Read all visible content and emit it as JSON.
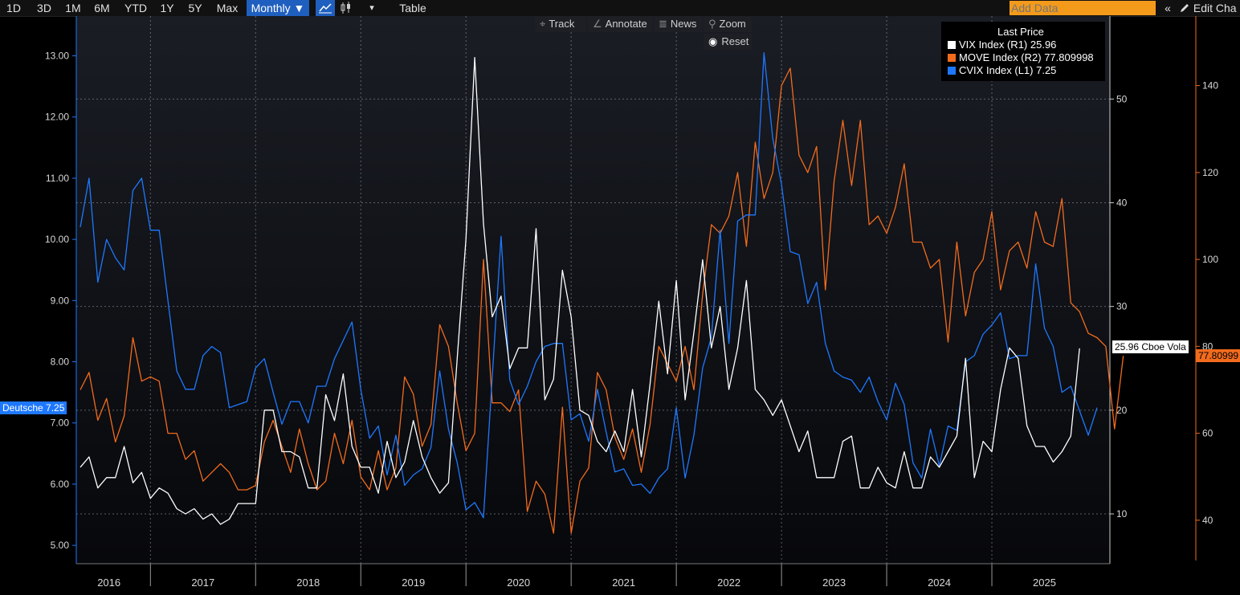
{
  "toolbar": {
    "ranges": [
      "1D",
      "3D",
      "1M",
      "6M",
      "YTD",
      "1Y",
      "5Y",
      "Max"
    ],
    "frequency": "Monthly ▼",
    "line_icon": "line-chart-icon",
    "candle_icon": "candlestick-icon",
    "more": "▾",
    "table": "Table",
    "add_data_placeholder": "Add Data",
    "collapse": "«",
    "edit_chart": "Edit Cha"
  },
  "chart_tools": {
    "track": "Track",
    "annotate": "Annotate",
    "news": "News",
    "zoom": "Zoom",
    "reset": "Reset"
  },
  "legend": {
    "title": "Last Price",
    "rows": [
      {
        "label": "VIX Index  (R1)   25.96",
        "color": "#ffffff"
      },
      {
        "label": "MOVE Index  (R2)  77.809998",
        "color": "#f26b1d"
      },
      {
        "label": "CVIX Index  (L1)  7.25",
        "color": "#1e78ff"
      }
    ]
  },
  "flags": {
    "left": "Deutsche 7.25",
    "vix": "25.96 Cboe Vola",
    "move": "77.80999"
  },
  "chart_data": {
    "type": "line",
    "x_labels": [
      "2016",
      "2017",
      "2018",
      "2019",
      "2020",
      "2021",
      "2022",
      "2023",
      "2024",
      "2025"
    ],
    "axes": {
      "L1": {
        "min": 4.7,
        "max": 13.65,
        "ticks": [
          "5.00",
          "6.00",
          "7.00",
          "8.00",
          "9.00",
          "10.00",
          "11.00",
          "12.00",
          "13.00"
        ],
        "color": "#1e78ff"
      },
      "R1": {
        "min": 5.2,
        "max": 58.0,
        "ticks": [
          "10",
          "20",
          "30",
          "40",
          "50"
        ],
        "color": "#ffffff"
      },
      "R2": {
        "min": 30.0,
        "max": 156.0,
        "ticks": [
          "40",
          "60",
          "80",
          "100",
          "120",
          "140"
        ],
        "color": "#f26b1d"
      }
    },
    "grid": true,
    "series": [
      {
        "name": "CVIX Index",
        "axis": "L1",
        "color": "#1e78ff",
        "values": [
          10.2,
          11.0,
          9.3,
          10.0,
          9.7,
          9.5,
          10.8,
          11.0,
          10.15,
          10.15,
          9.0,
          7.85,
          7.55,
          7.55,
          8.1,
          8.25,
          8.15,
          7.25,
          7.3,
          7.35,
          7.9,
          8.05,
          7.5,
          6.98,
          7.35,
          7.35,
          7.0,
          7.6,
          7.6,
          8.05,
          8.35,
          8.65,
          7.55,
          6.75,
          6.95,
          6.15,
          6.8,
          5.98,
          6.15,
          6.25,
          6.6,
          7.85,
          6.9,
          6.35,
          5.58,
          5.7,
          5.45,
          7.75,
          10.05,
          7.7,
          7.3,
          7.6,
          8.0,
          8.25,
          8.3,
          8.3,
          7.05,
          7.15,
          6.7,
          7.55,
          6.85,
          6.2,
          6.25,
          5.98,
          6.0,
          5.85,
          6.1,
          6.25,
          7.25,
          6.1,
          6.8,
          7.9,
          8.4,
          10.15,
          8.3,
          10.3,
          10.4,
          10.4,
          13.05,
          11.65,
          10.9,
          9.8,
          9.75,
          8.95,
          9.3,
          8.3,
          7.85,
          7.75,
          7.7,
          7.5,
          7.75,
          7.35,
          7.05,
          7.65,
          7.3,
          6.35,
          6.1,
          6.9,
          6.3,
          6.95,
          6.88,
          8.0,
          8.1,
          8.45,
          8.6,
          8.8,
          8.05,
          8.1,
          8.1,
          9.6,
          8.55,
          8.25,
          7.5,
          7.6,
          7.2,
          6.8,
          7.25
        ]
      },
      {
        "name": "MOVE Index",
        "axis": "R2",
        "color": "#f26b1d",
        "values": [
          70,
          74,
          63,
          68,
          58,
          64,
          82,
          72,
          73,
          72,
          60,
          60,
          54,
          56,
          49,
          51,
          53,
          51,
          47,
          47,
          48,
          58,
          63,
          57,
          51,
          61,
          53,
          47,
          49,
          60,
          53,
          63,
          50,
          47,
          56,
          47,
          52,
          73,
          69,
          57,
          62,
          85,
          80,
          67,
          56,
          60,
          100,
          67,
          67,
          65,
          70,
          42,
          49,
          46,
          37,
          66,
          37,
          49,
          52,
          74,
          70,
          59,
          54,
          61,
          51,
          62,
          80,
          76,
          72,
          80,
          70,
          92,
          108,
          106,
          110,
          120,
          103,
          127,
          114,
          120,
          140,
          144,
          124,
          120,
          126,
          93,
          118,
          132,
          117,
          132,
          108,
          110,
          106,
          112,
          122,
          104,
          104,
          98,
          100,
          81,
          104,
          87,
          97,
          100,
          111,
          93,
          102,
          104,
          98,
          111,
          104,
          103,
          114,
          90,
          88,
          83,
          82,
          80,
          61,
          77.81
        ]
      },
      {
        "name": "VIX Index",
        "axis": "R1",
        "color": "#ffffff",
        "values": [
          14.5,
          15.5,
          12.5,
          13.5,
          13.5,
          16.5,
          13.0,
          14.0,
          11.5,
          12.5,
          12.0,
          10.5,
          10.0,
          10.5,
          9.5,
          10.0,
          9.0,
          9.5,
          11.0,
          11.0,
          11.0,
          20.0,
          20.0,
          16.0,
          16.0,
          15.5,
          12.5,
          12.5,
          21.5,
          19.0,
          23.5,
          16.5,
          14.5,
          14.5,
          12.0,
          17.0,
          13.5,
          15.0,
          19.0,
          15.5,
          13.5,
          12.0,
          13.0,
          25.0,
          36.5,
          54.0,
          38.0,
          29.0,
          31.0,
          24.0,
          26.0,
          26.0,
          37.5,
          21.0,
          23.0,
          33.5,
          29.0,
          20.0,
          19.5,
          17.0,
          16.0,
          18.0,
          16.0,
          22.0,
          15.5,
          22.5,
          30.5,
          23.5,
          32.5,
          21.0,
          27.5,
          34.5,
          26.0,
          30.0,
          22.0,
          26.0,
          32.5,
          22.0,
          21.0,
          19.5,
          21.0,
          18.5,
          16.0,
          18.0,
          13.5,
          13.5,
          13.5,
          17.0,
          17.5,
          12.5,
          12.5,
          14.5,
          13.0,
          12.5,
          16.0,
          12.5,
          12.5,
          15.5,
          14.5,
          16.0,
          17.5,
          25.0,
          13.5,
          17.0,
          16.0,
          22.0,
          26.0,
          25.0,
          18.5,
          16.5,
          16.5,
          15.0,
          16.0,
          17.5,
          25.96
        ]
      }
    ]
  }
}
